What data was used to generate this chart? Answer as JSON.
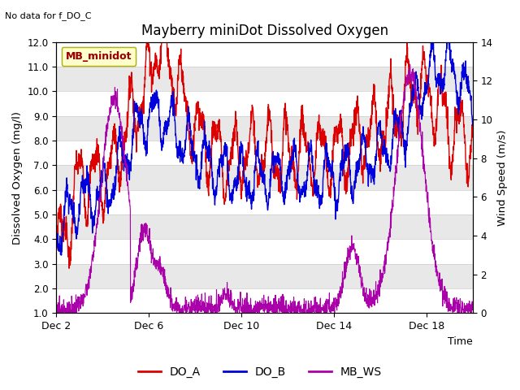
{
  "title": "Mayberry miniDot Dissolved Oxygen",
  "top_left_note": "No data for f_DO_C",
  "legend_box_label": "MB_minidot",
  "xlabel": "Time",
  "ylabel_left": "Dissolved Oxygen (mg/l)",
  "ylabel_right": "Wind Speed (m/s)",
  "ylim_left": [
    1.0,
    12.0
  ],
  "ylim_right": [
    0,
    14
  ],
  "yticks_left": [
    1.0,
    2.0,
    3.0,
    4.0,
    5.0,
    6.0,
    7.0,
    8.0,
    9.0,
    10.0,
    11.0,
    12.0
  ],
  "yticks_right": [
    0,
    2,
    4,
    6,
    8,
    10,
    12,
    14
  ],
  "xtick_labels": [
    "Dec 2",
    "Dec 6",
    "Dec 10",
    "Dec 14",
    "Dec 18"
  ],
  "xtick_positions": [
    2,
    6,
    10,
    14,
    18
  ],
  "xlim": [
    2,
    20
  ],
  "color_DO_A": "#dd0000",
  "color_DO_B": "#0000dd",
  "color_MB_WS": "#aa00aa",
  "legend_labels": [
    "DO_A",
    "DO_B",
    "MB_WS"
  ],
  "legend_colors": [
    "#dd0000",
    "#0000dd",
    "#aa00aa"
  ],
  "stripe_colors": [
    "#ffffff",
    "#e8e8e8"
  ],
  "linewidth_DO": 1.0,
  "linewidth_WS": 0.8,
  "fig_width": 6.4,
  "fig_height": 4.8,
  "dpi": 100
}
